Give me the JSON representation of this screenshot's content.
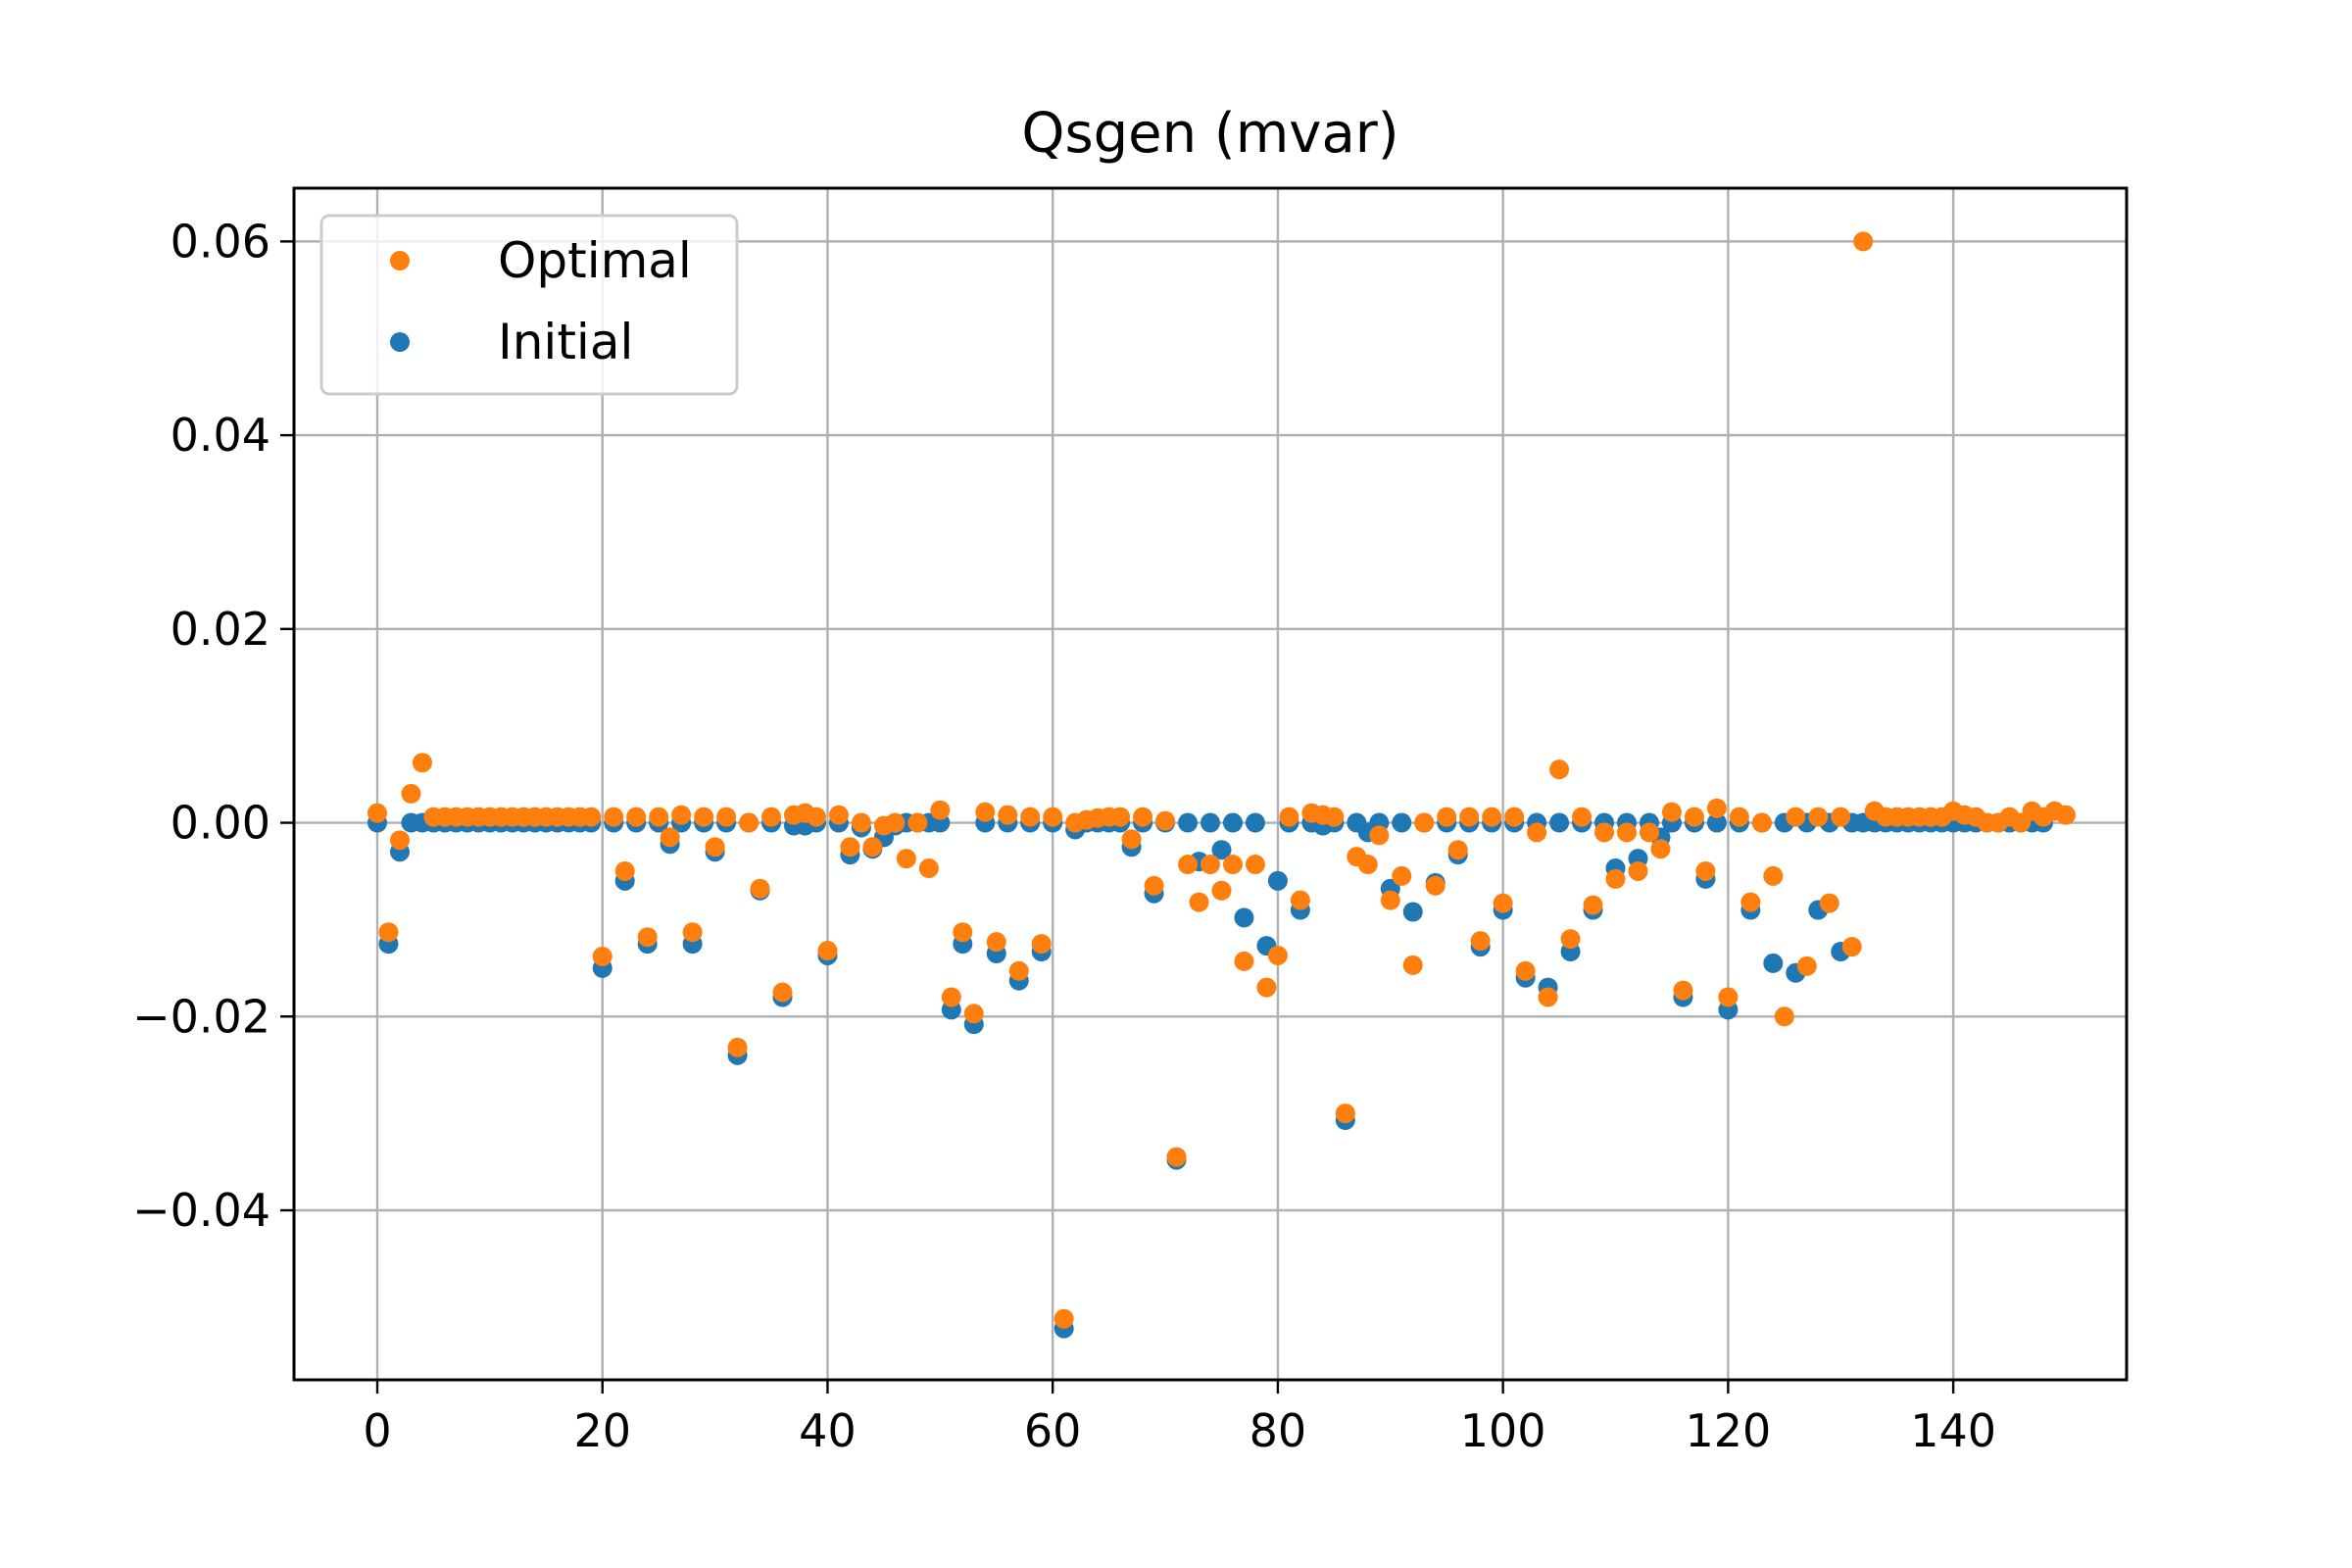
{
  "chart_data": {
    "type": "scatter",
    "title": "Qsgen (mvar)",
    "xlabel": "",
    "ylabel": "",
    "xlim": [
      -7.4,
      155.4
    ],
    "ylim": [
      -0.0575,
      0.0655
    ],
    "xticks": [
      0,
      20,
      40,
      60,
      80,
      100,
      120,
      140
    ],
    "xtick_labels": [
      "0",
      "20",
      "40",
      "60",
      "80",
      "100",
      "120",
      "140"
    ],
    "yticks": [
      0.06,
      0.04,
      0.02,
      0.0,
      -0.02,
      -0.04
    ],
    "ytick_labels": [
      "0.06",
      "0.04",
      "0.02",
      "0.00",
      "−0.02",
      "−0.04"
    ],
    "grid": true,
    "legend_position": "top-left",
    "colors": {
      "Optimal": "#ff7f0e",
      "Initial": "#1f77b4"
    },
    "series": [
      {
        "name": "Initial",
        "values": [
          0.0,
          -0.0125,
          -0.003,
          0.0,
          0.0,
          0.0,
          0.0,
          0.0,
          0.0,
          0.0,
          0.0,
          0.0,
          0.0,
          0.0,
          0.0,
          0.0,
          0.0,
          0.0,
          0.0,
          0.0,
          -0.015,
          0.0,
          -0.006,
          0.0,
          -0.0125,
          0.0,
          -0.0022,
          0.0,
          -0.0125,
          0.0,
          -0.003,
          0.0,
          -0.024,
          0.0,
          -0.007,
          0.0,
          -0.018,
          -0.0003,
          -0.0003,
          0.0,
          -0.0137,
          0.0,
          -0.0033,
          -0.0005,
          -0.0027,
          -0.0015,
          -0.0003,
          0.0,
          0.0,
          0.0,
          0.0,
          -0.0193,
          -0.0125,
          -0.0208,
          0.0,
          -0.0135,
          0.0,
          -0.0163,
          0.0,
          -0.0133,
          0.0,
          -0.0522,
          -0.0007,
          0.0,
          0.0,
          0.0,
          0.0,
          -0.0025,
          0.0,
          -0.0073,
          0.0,
          -0.0348,
          0.0,
          -0.004,
          0.0,
          -0.0028,
          0.0,
          -0.0098,
          0.0,
          -0.0127,
          -0.006,
          0.0,
          -0.009,
          0.0,
          -0.0003,
          0.0,
          -0.0307,
          0.0,
          -0.001,
          0.0,
          -0.0068,
          0.0,
          -0.0092,
          0.0,
          -0.0062,
          0.0,
          -0.0033,
          0.0,
          -0.0128,
          0.0,
          -0.009,
          0.0,
          -0.016,
          0.0,
          -0.017,
          0.0,
          -0.0133,
          0.0,
          -0.009,
          0.0,
          -0.0047,
          0.0,
          -0.0037,
          0.0,
          -0.0015,
          0.0,
          -0.018,
          0.0,
          -0.0058,
          0.0,
          -0.0193,
          0.0,
          -0.009,
          0.0,
          -0.0145,
          0.0,
          -0.0155,
          0.0,
          -0.009,
          0.0,
          -0.0133,
          0.0,
          0.0,
          0.0,
          0.0,
          0.0,
          0.0,
          0.0,
          0.0,
          0.0,
          0.0,
          0.0,
          0.0,
          0.0,
          0.0,
          0.0,
          0.0,
          0.0,
          0.0
        ]
      },
      {
        "name": "Optimal",
        "values": [
          0.001,
          -0.0113,
          -0.0018,
          0.003,
          0.0062,
          0.0006,
          0.0006,
          0.0006,
          0.0006,
          0.0006,
          0.0006,
          0.0006,
          0.0006,
          0.0006,
          0.0006,
          0.0006,
          0.0006,
          0.0006,
          0.0006,
          0.0006,
          -0.0138,
          0.0006,
          -0.005,
          0.0006,
          -0.0118,
          0.0006,
          -0.0015,
          0.0008,
          -0.0113,
          0.0006,
          -0.0025,
          0.0006,
          -0.0232,
          0.0,
          -0.0068,
          0.0006,
          -0.0175,
          0.0008,
          0.001,
          0.0006,
          -0.0132,
          0.0008,
          -0.0025,
          0.0,
          -0.0025,
          -0.0003,
          0.0,
          -0.0037,
          0.0,
          -0.0047,
          0.0013,
          -0.018,
          -0.0113,
          -0.0197,
          0.0011,
          -0.0123,
          0.0008,
          -0.0153,
          0.0006,
          -0.0125,
          0.0006,
          -0.0512,
          0.0,
          0.0003,
          0.0005,
          0.0006,
          0.0006,
          -0.0017,
          0.0006,
          -0.0065,
          0.0002,
          -0.0345,
          -0.0043,
          -0.0082,
          -0.0043,
          -0.007,
          -0.0043,
          -0.0143,
          -0.0043,
          -0.017,
          -0.0137,
          0.0006,
          -0.008,
          0.001,
          0.0008,
          0.0006,
          -0.03,
          -0.0035,
          -0.0043,
          -0.0013,
          -0.008,
          -0.0055,
          -0.0147,
          0.0,
          -0.0065,
          0.0006,
          -0.0028,
          0.0006,
          -0.0122,
          0.0006,
          -0.0083,
          0.0006,
          -0.0153,
          -0.001,
          -0.018,
          0.0055,
          -0.012,
          0.0006,
          -0.0085,
          -0.001,
          -0.0058,
          -0.001,
          -0.005,
          -0.001,
          -0.0027,
          0.0011,
          -0.0173,
          0.0006,
          -0.005,
          0.0015,
          -0.018,
          0.0006,
          -0.0082,
          0.0,
          -0.0055,
          -0.02,
          0.0006,
          -0.0148,
          0.0006,
          -0.0083,
          0.0006,
          -0.0128,
          0.06,
          0.0012,
          0.0006,
          0.0006,
          0.0006,
          0.0006,
          0.0006,
          0.0006,
          0.0012,
          0.0008,
          0.0006,
          0.0,
          0.0,
          0.0006,
          0.0,
          0.0012,
          0.0006,
          0.0012,
          0.0008
        ]
      }
    ]
  },
  "legend": {
    "items": [
      {
        "label": "Optimal",
        "color": "#ff7f0e"
      },
      {
        "label": "Initial",
        "color": "#1f77b4"
      }
    ]
  }
}
